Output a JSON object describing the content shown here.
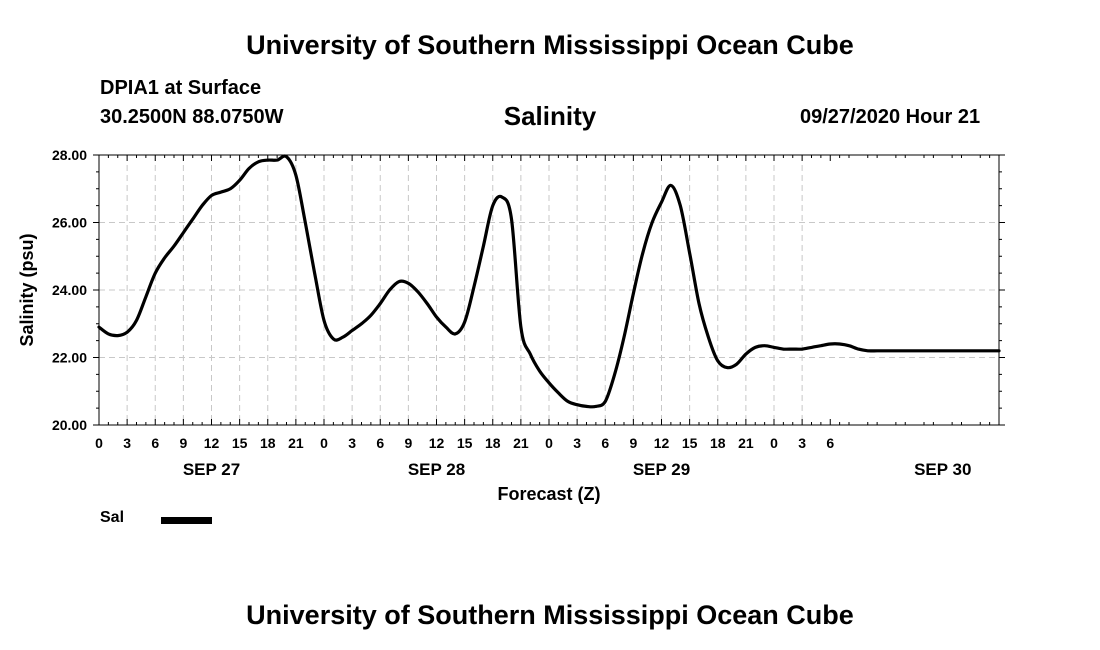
{
  "header": {
    "title_top": "University of Southern Mississippi Ocean Cube",
    "title_bottom": "University of Southern Mississippi Ocean Cube",
    "station": "DPIA1 at Surface",
    "coords": "30.2500N 88.0750W",
    "chart_title": "Salinity",
    "datetime": "09/27/2020 Hour 21"
  },
  "legend": {
    "label": "Sal"
  },
  "colors": {
    "line": "#000000",
    "grid": "#c8c8c8",
    "frame": "#000000"
  },
  "chart_data": {
    "type": "line",
    "title": "Salinity",
    "xlabel": "Forecast (Z)",
    "ylabel": "Salinity (psu)",
    "ylim": [
      20,
      28
    ],
    "xlim_hours": [
      0,
      96
    ],
    "yticks": [
      "20.00",
      "22.00",
      "24.00",
      "26.00",
      "28.00"
    ],
    "xtick_labels": [
      "0",
      "3",
      "6",
      "9",
      "12",
      "15",
      "18",
      "21",
      "0",
      "3",
      "6",
      "9",
      "12",
      "15",
      "18",
      "21",
      "0",
      "3",
      "6",
      "9",
      "12",
      "15",
      "18",
      "21",
      "0",
      "3",
      "6"
    ],
    "day_labels": [
      {
        "label": "SEP 27",
        "hour": 12
      },
      {
        "label": "SEP 28",
        "hour": 36
      },
      {
        "label": "SEP 29",
        "hour": 60
      },
      {
        "label": "SEP 30",
        "hour": 90
      }
    ],
    "grid": true,
    "series": [
      {
        "name": "Sal",
        "x": [
          0,
          1,
          2,
          3,
          4,
          5,
          6,
          7,
          8,
          9,
          10,
          11,
          12,
          13,
          14,
          15,
          16,
          17,
          18,
          19,
          20,
          21,
          22,
          23,
          24,
          25,
          26,
          27,
          28,
          29,
          30,
          31,
          32,
          33,
          34,
          35,
          36,
          37,
          38,
          39,
          40,
          41,
          42,
          43,
          44,
          45,
          46,
          47,
          48,
          49,
          50,
          51,
          52,
          53,
          54,
          55,
          56,
          57,
          58,
          59,
          60,
          61,
          62,
          63,
          64,
          65,
          66,
          67,
          68,
          69,
          70,
          71,
          72,
          73,
          74,
          75,
          76,
          77,
          78,
          79,
          80,
          81,
          82,
          83,
          84,
          85,
          86,
          87,
          88,
          89,
          90,
          91,
          92,
          93,
          94,
          95,
          96
        ],
        "values": [
          22.9,
          22.7,
          22.65,
          22.75,
          23.1,
          23.8,
          24.5,
          24.95,
          25.3,
          25.7,
          26.1,
          26.5,
          26.8,
          26.9,
          27.0,
          27.25,
          27.6,
          27.8,
          27.85,
          27.85,
          27.95,
          27.4,
          26.0,
          24.5,
          23.1,
          22.55,
          22.6,
          22.8,
          23.0,
          23.25,
          23.6,
          24.0,
          24.25,
          24.2,
          23.95,
          23.6,
          23.2,
          22.9,
          22.7,
          23.05,
          24.1,
          25.3,
          26.5,
          26.75,
          26.1,
          22.9,
          22.1,
          21.6,
          21.25,
          20.95,
          20.7,
          20.6,
          20.55,
          20.55,
          20.7,
          21.5,
          22.6,
          23.9,
          25.1,
          26.0,
          26.6,
          27.1,
          26.5,
          25.1,
          23.6,
          22.6,
          21.9,
          21.7,
          21.8,
          22.1,
          22.3,
          22.35,
          22.3,
          22.25,
          22.25,
          22.25,
          22.3,
          22.35,
          22.4,
          22.4,
          22.35,
          22.25,
          22.2,
          22.2,
          22.2,
          22.2,
          22.2,
          22.2,
          22.2,
          22.2,
          22.2,
          22.2,
          22.2,
          22.2,
          22.2,
          22.2,
          22.2
        ]
      }
    ]
  }
}
